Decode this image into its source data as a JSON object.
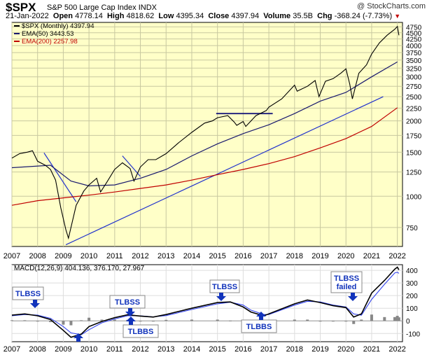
{
  "header": {
    "symbol": "$SPX",
    "name": "S&P 500 Large Cap Index",
    "exchange": "INDX",
    "watermark": "@ StockCharts.com",
    "date": "21-Jan-2022",
    "open_label": "Open",
    "open": "4778.14",
    "high_label": "High",
    "high": "4818.62",
    "low_label": "Low",
    "low": "4395.34",
    "close_label": "Close",
    "close": "4397.94",
    "volume_label": "Volume",
    "volume": "35.5B",
    "chg_label": "Chg",
    "chg": "-368.24 (-7.73%)",
    "chg_arrow": "▼"
  },
  "colors": {
    "plot_bg": "#ffffc8",
    "ema50": "#1a1a6e",
    "ema200": "#c00000",
    "trendline": "#2233cc",
    "annotation": "#1133bb",
    "macd_line": "#000000",
    "signal_line": "#3344ee",
    "histogram": "#888888"
  },
  "chart_data": [
    {
      "type": "line",
      "title": "$SPX (Monthly) 4397.94",
      "legend": [
        {
          "name": "$SPX (Monthly) 4397.94",
          "color": "#000000"
        },
        {
          "name": "EMA(50) 3443.53",
          "color": "#1a1a6e"
        },
        {
          "name": "EMA(200) 2257.98",
          "color": "#c00000"
        }
      ],
      "legend_position": "top-left",
      "x_ticks": [
        "2007",
        "2008",
        "2009",
        "2010",
        "2011",
        "2012",
        "2013",
        "2014",
        "2015",
        "2016",
        "2017",
        "2018",
        "2019",
        "2020",
        "2021",
        "2022"
      ],
      "y_scale": "log",
      "y_ticks": [
        750,
        1000,
        1250,
        1500,
        1750,
        2000,
        2250,
        2500,
        2750,
        3000,
        3250,
        3500,
        3750,
        4000,
        4250,
        4500,
        4750
      ],
      "ylim": [
        630,
        4950
      ],
      "grid": true,
      "series": [
        {
          "name": "$SPX (Monthly) 4397.94",
          "x": [
            2007.0,
            2007.3,
            2007.6,
            2007.8,
            2008.0,
            2008.3,
            2008.5,
            2008.7,
            2008.9,
            2009.1,
            2009.2,
            2009.5,
            2009.8,
            2010.0,
            2010.3,
            2010.45,
            2010.7,
            2011.0,
            2011.3,
            2011.6,
            2011.75,
            2012.0,
            2012.3,
            2012.6,
            2013.0,
            2013.5,
            2014.0,
            2014.5,
            2014.8,
            2015.0,
            2015.4,
            2015.65,
            2015.75,
            2016.0,
            2016.1,
            2016.5,
            2016.9,
            2017.0,
            2017.5,
            2018.0,
            2018.1,
            2018.5,
            2018.8,
            2018.95,
            2019.2,
            2019.5,
            2019.8,
            2020.0,
            2020.15,
            2020.25,
            2020.5,
            2020.8,
            2021.0,
            2021.3,
            2021.6,
            2021.9,
            2022.0,
            2022.06
          ],
          "y": [
            1420,
            1480,
            1500,
            1520,
            1380,
            1330,
            1280,
            1160,
            900,
            735,
            680,
            920,
            1050,
            1110,
            1180,
            1040,
            1140,
            1280,
            1360,
            1290,
            1150,
            1310,
            1400,
            1400,
            1480,
            1640,
            1800,
            1960,
            2000,
            2060,
            2100,
            1980,
            1920,
            1990,
            1900,
            2100,
            2200,
            2270,
            2450,
            2780,
            2630,
            2750,
            2900,
            2500,
            2880,
            2950,
            3100,
            3230,
            2800,
            2450,
            3100,
            3350,
            3700,
            4100,
            4400,
            4650,
            4770,
            4398
          ]
        },
        {
          "name": "EMA(50) 3443.53",
          "x": [
            2007.0,
            2008.5,
            2009.3,
            2010.0,
            2011.0,
            2012.0,
            2013.0,
            2014.0,
            2015.0,
            2016.0,
            2017.0,
            2018.0,
            2019.0,
            2020.0,
            2021.0,
            2022.0
          ],
          "y": [
            1300,
            1330,
            1150,
            1100,
            1110,
            1180,
            1280,
            1450,
            1620,
            1780,
            1930,
            2140,
            2400,
            2600,
            3000,
            3443
          ]
        },
        {
          "name": "EMA(200) 2257.98",
          "x": [
            2007.0,
            2008.0,
            2009.0,
            2010.0,
            2011.0,
            2012.0,
            2013.0,
            2014.0,
            2015.0,
            2016.0,
            2017.0,
            2018.0,
            2019.0,
            2020.0,
            2021.0,
            2022.0
          ],
          "y": [
            920,
            960,
            985,
            1010,
            1040,
            1075,
            1110,
            1160,
            1220,
            1280,
            1350,
            1440,
            1560,
            1700,
            1900,
            2258
          ]
        }
      ]
    },
    {
      "type": "line",
      "title": "MACD(12,26,9) 404.136, 376.170, 27.967",
      "legend_position": "top-left",
      "x_ticks": [
        "2007",
        "2008",
        "2009",
        "2010",
        "2011",
        "2012",
        "2013",
        "2014",
        "2015",
        "2016",
        "2017",
        "2018",
        "2019",
        "2020",
        "2021",
        "2022"
      ],
      "y_ticks": [
        -100,
        0,
        100,
        200,
        300,
        400
      ],
      "ylim": [
        -165,
        445
      ],
      "grid": true,
      "series": [
        {
          "name": "MACD",
          "x": [
            2007.0,
            2007.5,
            2008.0,
            2008.5,
            2009.0,
            2009.3,
            2009.7,
            2010.0,
            2010.5,
            2011.0,
            2011.5,
            2012.0,
            2012.5,
            2013.0,
            2014.0,
            2015.0,
            2015.5,
            2016.0,
            2016.3,
            2016.8,
            2017.0,
            2018.0,
            2018.5,
            2019.0,
            2019.5,
            2020.0,
            2020.3,
            2020.6,
            2021.0,
            2021.5,
            2021.9,
            2022.0,
            2022.06
          ],
          "y": [
            45,
            55,
            40,
            10,
            -75,
            -130,
            -105,
            -45,
            -5,
            25,
            48,
            38,
            30,
            50,
            100,
            145,
            150,
            110,
            70,
            40,
            55,
            135,
            165,
            145,
            120,
            105,
            30,
            55,
            220,
            320,
            410,
            425,
            404
          ]
        },
        {
          "name": "Signal",
          "x": [
            2007.0,
            2007.5,
            2008.0,
            2008.5,
            2009.0,
            2009.3,
            2009.7,
            2010.0,
            2010.5,
            2011.0,
            2011.5,
            2012.0,
            2012.5,
            2013.0,
            2014.0,
            2015.0,
            2015.5,
            2016.0,
            2016.3,
            2016.8,
            2017.0,
            2018.0,
            2018.5,
            2019.0,
            2019.5,
            2020.0,
            2020.3,
            2020.6,
            2021.0,
            2021.5,
            2021.9,
            2022.0,
            2022.06
          ],
          "y": [
            40,
            50,
            45,
            20,
            -45,
            -95,
            -110,
            -70,
            -15,
            15,
            40,
            40,
            32,
            42,
            90,
            135,
            148,
            125,
            85,
            50,
            50,
            125,
            155,
            150,
            125,
            110,
            55,
            45,
            170,
            290,
            380,
            385,
            376
          ]
        },
        {
          "name": "Histogram",
          "x": [
            2007.0,
            2007.5,
            2008.0,
            2008.5,
            2009.0,
            2009.3,
            2009.7,
            2010.0,
            2010.5,
            2011.0,
            2011.5,
            2012.0,
            2012.5,
            2013.0,
            2014.0,
            2015.0,
            2015.5,
            2016.0,
            2016.3,
            2016.8,
            2017.0,
            2018.0,
            2018.5,
            2019.0,
            2019.5,
            2020.0,
            2020.3,
            2020.6,
            2021.0,
            2021.5,
            2021.9,
            2022.0,
            2022.06
          ],
          "y": [
            5,
            5,
            -5,
            -10,
            -30,
            -35,
            5,
            25,
            10,
            10,
            8,
            -2,
            -2,
            8,
            10,
            10,
            2,
            -15,
            -15,
            -10,
            5,
            10,
            10,
            -5,
            -5,
            -5,
            -25,
            10,
            50,
            30,
            30,
            40,
            28
          ]
        }
      ],
      "annotations": [
        {
          "text": "TLBSS",
          "x": 2007.8,
          "direction": "down"
        },
        {
          "text": "TLBSS",
          "x": 2011.6,
          "direction": "down"
        },
        {
          "text": "TLBBS",
          "x": 2011.7,
          "direction": "up"
        },
        {
          "text": "TLBBS",
          "x": 2009.6,
          "direction": "up"
        },
        {
          "text": "TLBSS",
          "x": 2015.0,
          "direction": "down"
        },
        {
          "text": "TLBBS",
          "x": 2016.6,
          "direction": "up"
        },
        {
          "text": "TLBSS failed",
          "x": 2020.0,
          "direction": "down"
        }
      ]
    }
  ]
}
